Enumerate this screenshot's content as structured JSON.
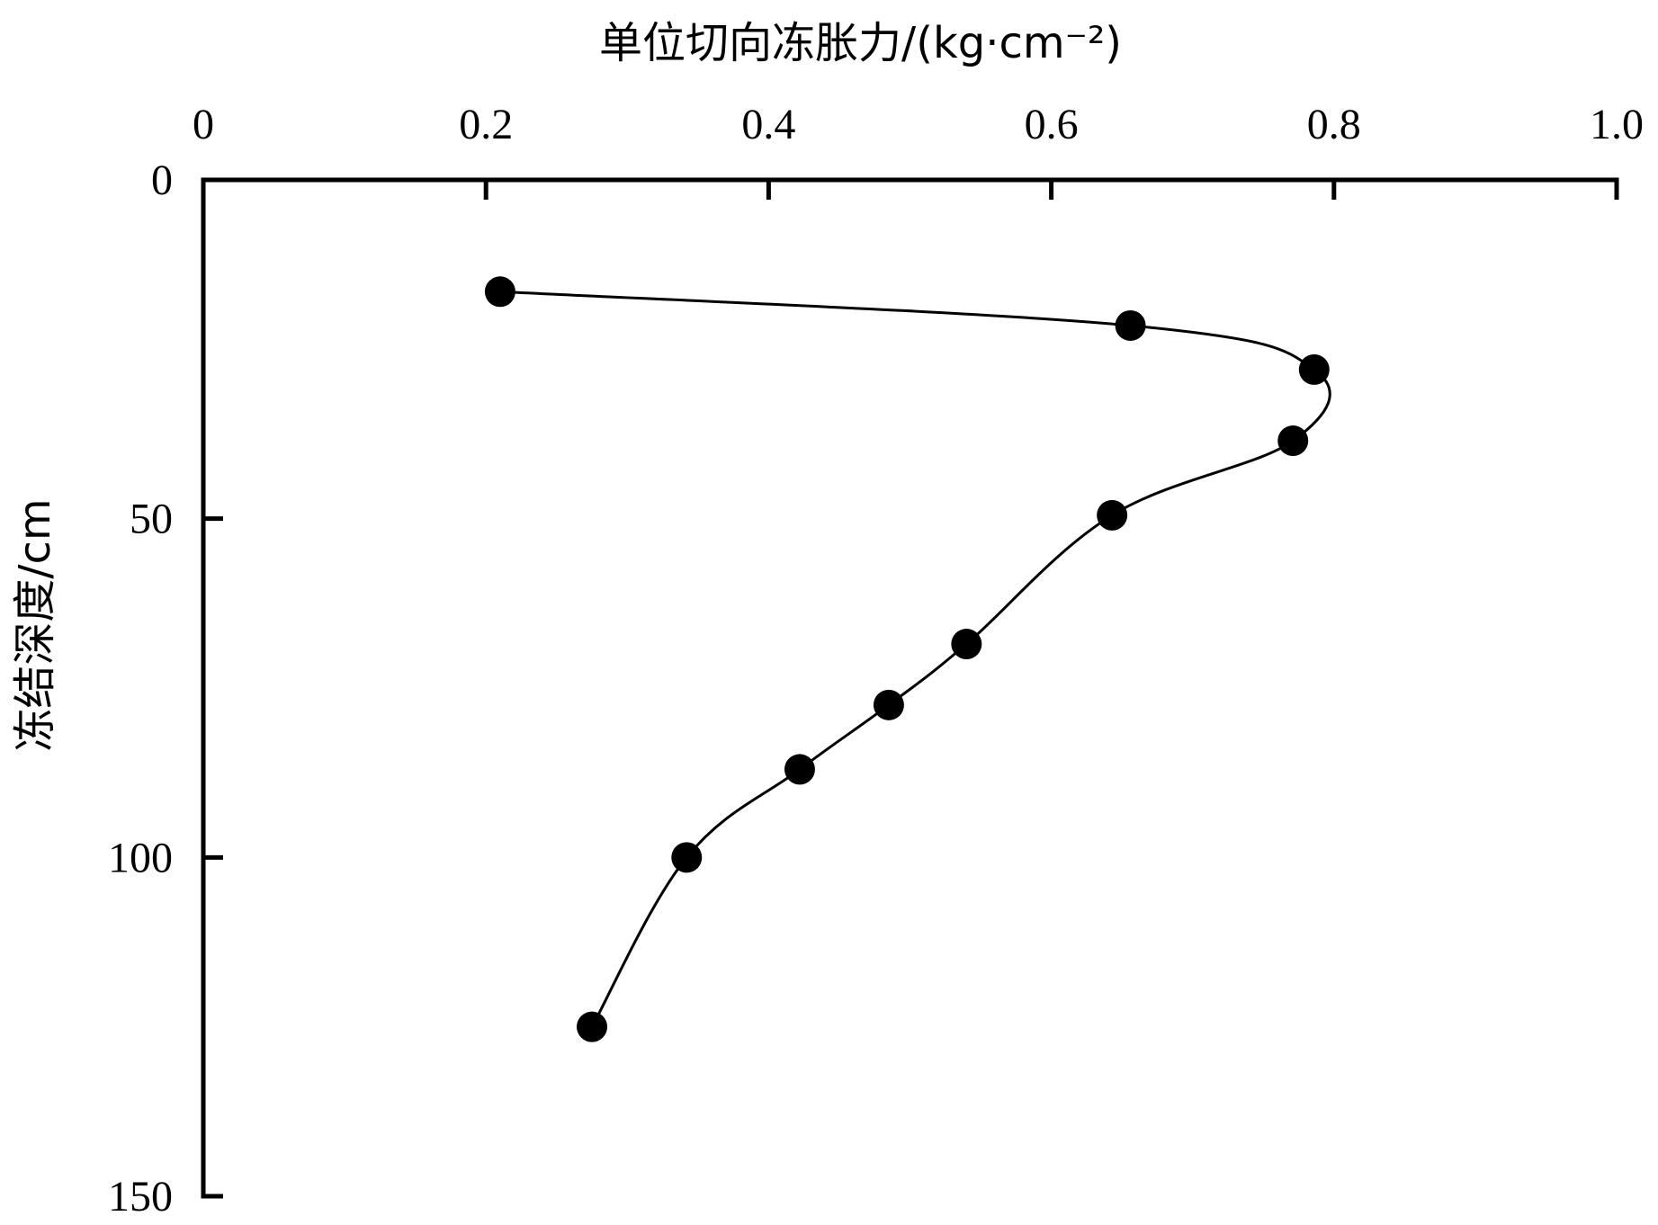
{
  "chart_data": {
    "type": "line",
    "x_axis": {
      "label": "单位切向冻胀力/(kg·cm⁻²)",
      "position": "top",
      "range": [
        0,
        1.0
      ],
      "ticks": [
        0,
        0.2,
        0.4,
        0.6,
        0.8,
        1.0
      ],
      "tick_labels": [
        "0",
        "0.2",
        "0.4",
        "0.6",
        "0.8",
        "1.0"
      ]
    },
    "y_axis": {
      "label": "冻结深度/cm",
      "inverted": true,
      "range": [
        0,
        150
      ],
      "ticks": [
        0,
        50,
        100,
        150
      ],
      "tick_labels": [
        "0",
        "50",
        "100",
        "150"
      ]
    },
    "grid": false,
    "legend": "none",
    "series": [
      {
        "color": "#000000",
        "marker": "filled-circle",
        "x": [
          0.21,
          0.656,
          0.786,
          0.771,
          0.643,
          0.54,
          0.485,
          0.422,
          0.342,
          0.275
        ],
        "y": [
          16.5,
          21.5,
          28,
          38.5,
          49.5,
          68.5,
          77.5,
          87,
          100,
          125
        ]
      }
    ]
  }
}
